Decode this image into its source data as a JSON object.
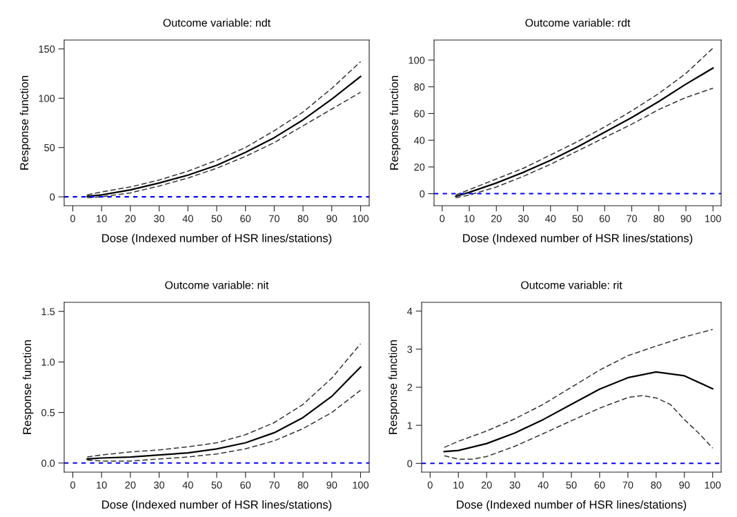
{
  "chart_data": [
    {
      "type": "line",
      "title": "Outcome variable: ndt",
      "xlabel": "Dose (Indexed number of HSR lines/stations)",
      "ylabel": "Response function",
      "xlim": [
        -3,
        103
      ],
      "ylim": [
        -9,
        159
      ],
      "xticks": [
        0,
        10,
        20,
        30,
        40,
        50,
        60,
        70,
        80,
        90,
        100
      ],
      "yticks": [
        0,
        50,
        100,
        150
      ],
      "grid": false,
      "x": [
        5,
        10,
        20,
        30,
        40,
        50,
        60,
        70,
        80,
        90,
        100
      ],
      "series": [
        {
          "color": "#000000",
          "line_style": "solid",
          "values": [
            0.5,
            2,
            7,
            14,
            22,
            32,
            45,
            60,
            78,
            99,
            122
          ]
        },
        {
          "color": "#333333",
          "line_style": "dashed",
          "values": [
            2,
            5,
            10,
            17,
            26,
            37,
            50,
            67,
            86,
            110,
            137
          ]
        },
        {
          "color": "#333333",
          "line_style": "dashed",
          "values": [
            -1,
            0,
            4,
            11,
            19,
            29,
            41,
            55,
            72,
            89,
            106
          ]
        }
      ],
      "ref_lines": [
        {
          "axis": "y",
          "value": 0,
          "color": "#0000ff",
          "line_style": "dashed"
        }
      ]
    },
    {
      "type": "line",
      "title": "Outcome variable: rdt",
      "xlabel": "Dose (Indexed number of HSR lines/stations)",
      "ylabel": "Response function",
      "xlim": [
        -3,
        103
      ],
      "ylim": [
        -9,
        115
      ],
      "xticks": [
        0,
        10,
        20,
        30,
        40,
        50,
        60,
        70,
        80,
        90,
        100
      ],
      "yticks": [
        0,
        20,
        40,
        60,
        80,
        100
      ],
      "grid": false,
      "x": [
        5,
        10,
        20,
        30,
        40,
        50,
        60,
        70,
        80,
        90,
        100
      ],
      "series": [
        {
          "color": "#000000",
          "line_style": "solid",
          "values": [
            -2,
            1,
            8,
            16,
            25,
            35,
            46,
            57,
            69,
            82,
            94
          ]
        },
        {
          "color": "#333333",
          "line_style": "dashed",
          "values": [
            -1,
            3,
            11,
            19,
            29,
            39,
            50,
            62,
            75,
            90,
            109
          ]
        },
        {
          "color": "#333333",
          "line_style": "dashed",
          "values": [
            -3,
            -1,
            5,
            13,
            22,
            32,
            42,
            52,
            63,
            72,
            79
          ]
        }
      ],
      "ref_lines": [
        {
          "axis": "y",
          "value": 0,
          "color": "#0000ff",
          "line_style": "dashed"
        }
      ]
    },
    {
      "type": "line",
      "title": "Outcome variable: nit",
      "xlabel": "Dose (Indexed number of HSR lines/stations)",
      "ylabel": "Response function",
      "xlim": [
        -3,
        103
      ],
      "ylim": [
        -0.09,
        1.59
      ],
      "xticks": [
        0,
        10,
        20,
        30,
        40,
        50,
        60,
        70,
        80,
        90,
        100
      ],
      "yticks": [
        {
          "value": 0,
          "label": "0.0"
        },
        0.5,
        {
          "value": 1,
          "label": "1.0"
        },
        1.5
      ],
      "grid": false,
      "x": [
        5,
        10,
        20,
        30,
        40,
        50,
        60,
        70,
        80,
        90,
        100
      ],
      "series": [
        {
          "color": "#000000",
          "line_style": "solid",
          "values": [
            0.04,
            0.05,
            0.06,
            0.08,
            0.1,
            0.14,
            0.2,
            0.3,
            0.45,
            0.66,
            0.95
          ]
        },
        {
          "color": "#333333",
          "line_style": "dashed",
          "values": [
            0.06,
            0.08,
            0.11,
            0.13,
            0.16,
            0.2,
            0.28,
            0.4,
            0.58,
            0.84,
            1.18
          ]
        },
        {
          "color": "#333333",
          "line_style": "dashed",
          "values": [
            0.03,
            0.02,
            0.02,
            0.04,
            0.06,
            0.09,
            0.14,
            0.22,
            0.34,
            0.5,
            0.72
          ]
        }
      ],
      "ref_lines": [
        {
          "axis": "y",
          "value": 0,
          "color": "#0000ff",
          "line_style": "dashed"
        }
      ]
    },
    {
      "type": "line",
      "title": "Outcome variable: rit",
      "xlabel": "Dose (Indexed number of HSR lines/stations)",
      "ylabel": "Response function",
      "xlim": [
        -3,
        103
      ],
      "ylim": [
        -0.23,
        4.23
      ],
      "xticks": [
        0,
        10,
        20,
        30,
        40,
        50,
        60,
        70,
        80,
        90,
        100
      ],
      "yticks": [
        0,
        1,
        2,
        3,
        4
      ],
      "grid": false,
      "series": [
        {
          "color": "#000000",
          "line_style": "solid",
          "x": [
            5,
            10,
            20,
            30,
            40,
            50,
            60,
            70,
            80,
            90,
            100
          ],
          "values": [
            0.31,
            0.34,
            0.52,
            0.8,
            1.15,
            1.55,
            1.95,
            2.25,
            2.4,
            2.3,
            1.96
          ]
        },
        {
          "color": "#333333",
          "line_style": "dashed",
          "x": [
            5,
            10,
            20,
            30,
            40,
            50,
            60,
            70,
            80,
            90,
            100
          ],
          "values": [
            0.42,
            0.58,
            0.85,
            1.17,
            1.55,
            2.0,
            2.45,
            2.83,
            3.08,
            3.32,
            3.52
          ]
        },
        {
          "color": "#333333",
          "line_style": "dashed",
          "x": [
            5,
            10,
            15,
            20,
            30,
            40,
            50,
            60,
            70,
            75,
            80,
            85,
            90,
            95,
            100
          ],
          "values": [
            0.2,
            0.11,
            0.11,
            0.18,
            0.45,
            0.78,
            1.12,
            1.45,
            1.73,
            1.78,
            1.72,
            1.55,
            1.15,
            0.8,
            0.4
          ]
        }
      ],
      "ref_lines": [
        {
          "axis": "y",
          "value": 0,
          "color": "#0000ff",
          "line_style": "dashed"
        }
      ]
    }
  ]
}
